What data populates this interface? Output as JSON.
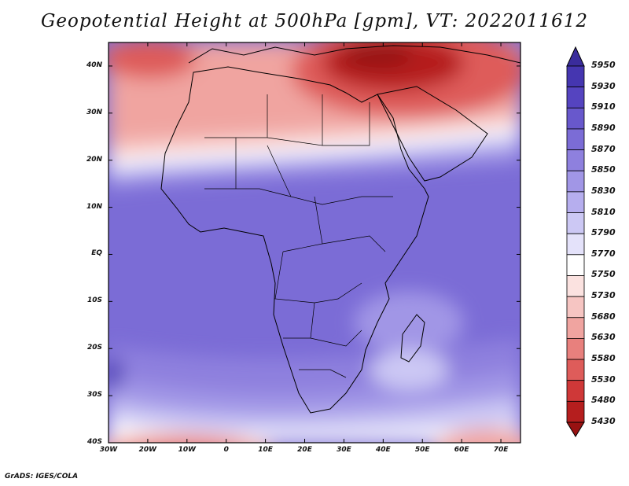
{
  "title": "Geopotential Height at 500hPa [gpm], VT: 2022011612",
  "footer": "GrADS: IGES/COLA",
  "map": {
    "variable": "Geopotential Height at 500hPa",
    "units": "gpm",
    "valid_time": "2022011612",
    "region": "Africa",
    "lon_range": [
      -30,
      75
    ],
    "lat_range": [
      -40,
      45
    ],
    "lat_labels": [
      "40N",
      "30N",
      "20N",
      "10N",
      "EQ",
      "10S",
      "20S",
      "30S",
      "40S"
    ],
    "lat_values": [
      40,
      30,
      20,
      10,
      0,
      -10,
      -20,
      -30,
      -40
    ],
    "lon_labels": [
      "30W",
      "20W",
      "10W",
      "0",
      "10E",
      "20E",
      "30E",
      "40E",
      "50E",
      "60E",
      "70E"
    ],
    "lon_values": [
      -30,
      -20,
      -10,
      0,
      10,
      20,
      30,
      40,
      50,
      60,
      70
    ]
  },
  "colorbar": {
    "labels": [
      "5950",
      "5930",
      "5910",
      "5890",
      "5870",
      "5850",
      "5830",
      "5810",
      "5790",
      "5770",
      "5750",
      "5730",
      "5680",
      "5630",
      "5580",
      "5530",
      "5480",
      "5430"
    ],
    "colors": [
      "#3a2c9c",
      "#4536b0",
      "#5544c0",
      "#6858cc",
      "#7b6cd6",
      "#8e80de",
      "#a196e6",
      "#b6aeee",
      "#ccc8f4",
      "#e4e2fa",
      "#ffffff",
      "#fbe2e0",
      "#f6c5c2",
      "#f0a4a0",
      "#e8807d",
      "#de5c5a",
      "#cf3838",
      "#b51e1e",
      "#981212"
    ]
  }
}
